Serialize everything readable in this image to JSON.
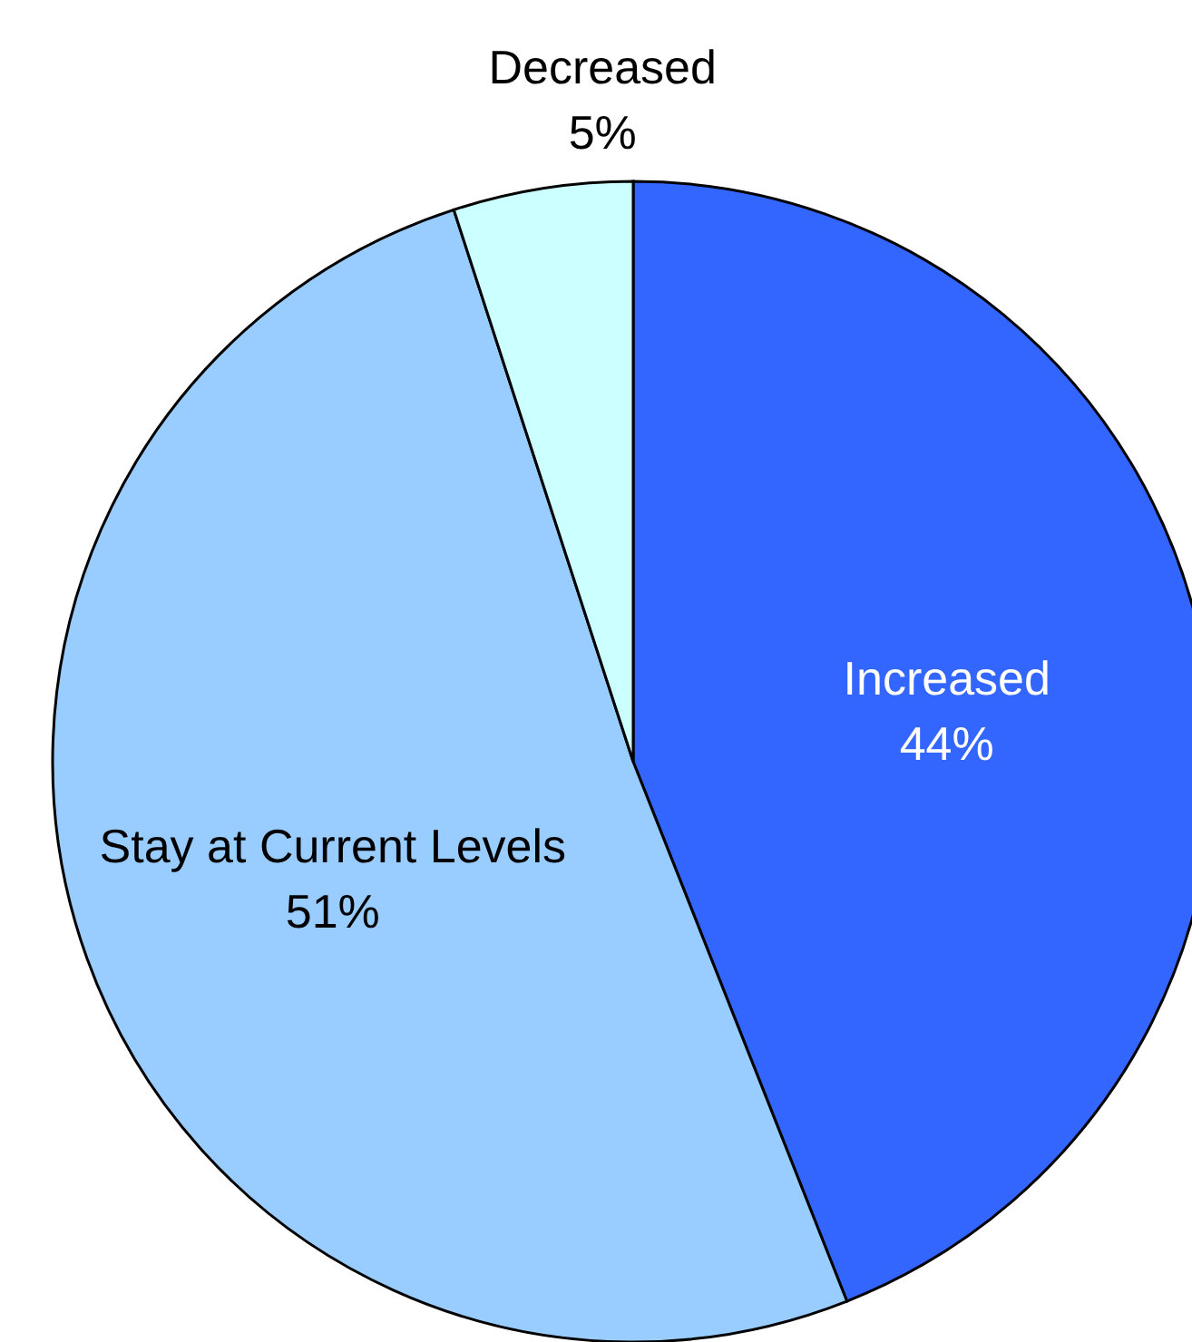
{
  "chart_data": {
    "type": "pie",
    "categories": [
      "Increased",
      "Stay at Current Levels",
      "Decreased"
    ],
    "values": [
      44,
      51,
      5
    ],
    "colors": [
      "#3366ff",
      "#99ccff",
      "#ccffff"
    ],
    "value_labels": [
      "44%",
      "51%",
      "5%"
    ],
    "legend": false
  }
}
